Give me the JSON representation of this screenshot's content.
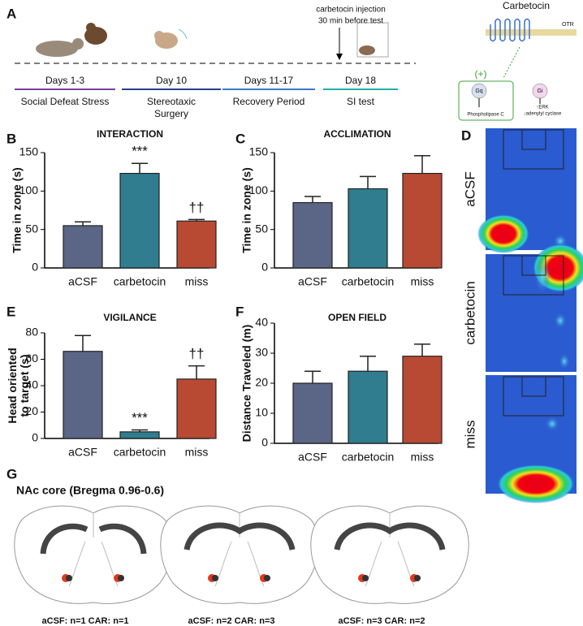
{
  "timeline": {
    "panel": "A",
    "note": [
      "carbetocin injection",
      "30 min before test"
    ],
    "stages": [
      {
        "days": "Days 1-3",
        "label": [
          "Social Defeat Stress"
        ],
        "color": "#7b3fa0"
      },
      {
        "days": "Day 10",
        "label": [
          "Stereotaxic",
          "Surgery"
        ],
        "color": "#2a3f8f"
      },
      {
        "days": "Days 11-17",
        "label": [
          "Recovery Period"
        ],
        "color": "#3a78d0"
      },
      {
        "days": "Day 18",
        "label": [
          "SI test"
        ],
        "color": "#1fb0a8"
      }
    ]
  },
  "schematic": {
    "ligand": "Carbetocin",
    "receptor": "OTR",
    "effect": "(+)",
    "gq": "Gq",
    "gq_effect": "Phospholipase C",
    "gi": "Gi",
    "gi_effects": [
      "↑ERK",
      "↓adenylyl cyclase"
    ]
  },
  "heatmaps": {
    "panel": "D",
    "labels": [
      "aCSF",
      "carbetocin",
      "miss"
    ]
  },
  "chart_data": [
    {
      "panel": "B",
      "type": "bar",
      "title": "INTERACTION",
      "ylabel": [
        "Time in zone (s)"
      ],
      "categories": [
        "aCSF",
        "carbetocin",
        "miss"
      ],
      "colors": [
        "#5b6585",
        "#2f7d8f",
        "#b84a33"
      ],
      "values": [
        55,
        123,
        61
      ],
      "errors": [
        5,
        13,
        2
      ],
      "ylim": [
        0,
        150
      ],
      "yticks": [
        0,
        50,
        100,
        150
      ],
      "annotations": [
        {
          "text": "***",
          "category": "carbetocin"
        },
        {
          "text": "††",
          "category": "miss"
        }
      ]
    },
    {
      "panel": "C",
      "type": "bar",
      "title": "ACCLIMATION",
      "ylabel": [
        "Time in zone (s)"
      ],
      "categories": [
        "aCSF",
        "carbetocin",
        "miss"
      ],
      "colors": [
        "#5b6585",
        "#2f7d8f",
        "#b84a33"
      ],
      "values": [
        85,
        103,
        123
      ],
      "errors": [
        8,
        16,
        23
      ],
      "ylim": [
        0,
        150
      ],
      "yticks": [
        0,
        50,
        100,
        150
      ],
      "annotations": []
    },
    {
      "panel": "E",
      "type": "bar",
      "title": "VIGILANCE",
      "ylabel": [
        "Head oriented",
        "to target (s)"
      ],
      "categories": [
        "aCSF",
        "carbetocin",
        "miss"
      ],
      "colors": [
        "#5b6585",
        "#2f7d8f",
        "#b84a33"
      ],
      "values": [
        66,
        5,
        45
      ],
      "errors": [
        12,
        1.5,
        10
      ],
      "ylim": [
        0,
        80
      ],
      "yticks": [
        0,
        20,
        40,
        60,
        80
      ],
      "annotations": [
        {
          "text": "***",
          "category": "carbetocin"
        },
        {
          "text": "††",
          "category": "miss"
        }
      ]
    },
    {
      "panel": "F",
      "type": "bar",
      "title": "OPEN FIELD",
      "ylabel": [
        "Distance Traveled (m)"
      ],
      "categories": [
        "aCSF",
        "carbetocin",
        "miss"
      ],
      "colors": [
        "#5b6585",
        "#2f7d8f",
        "#b84a33"
      ],
      "values": [
        20,
        24,
        29
      ],
      "errors": [
        4,
        5,
        4
      ],
      "ylim": [
        0,
        40
      ],
      "yticks": [
        0,
        10,
        20,
        30,
        40
      ],
      "annotations": []
    }
  ],
  "sections": {
    "panel": "G",
    "title": "NAc core (Bregma 0.96-0.6)",
    "captions": [
      "aCSF: n=1 CAR: n=1",
      "aCSF: n=2 CAR: n=3",
      "aCSF: n=3 CAR: n=2"
    ]
  }
}
